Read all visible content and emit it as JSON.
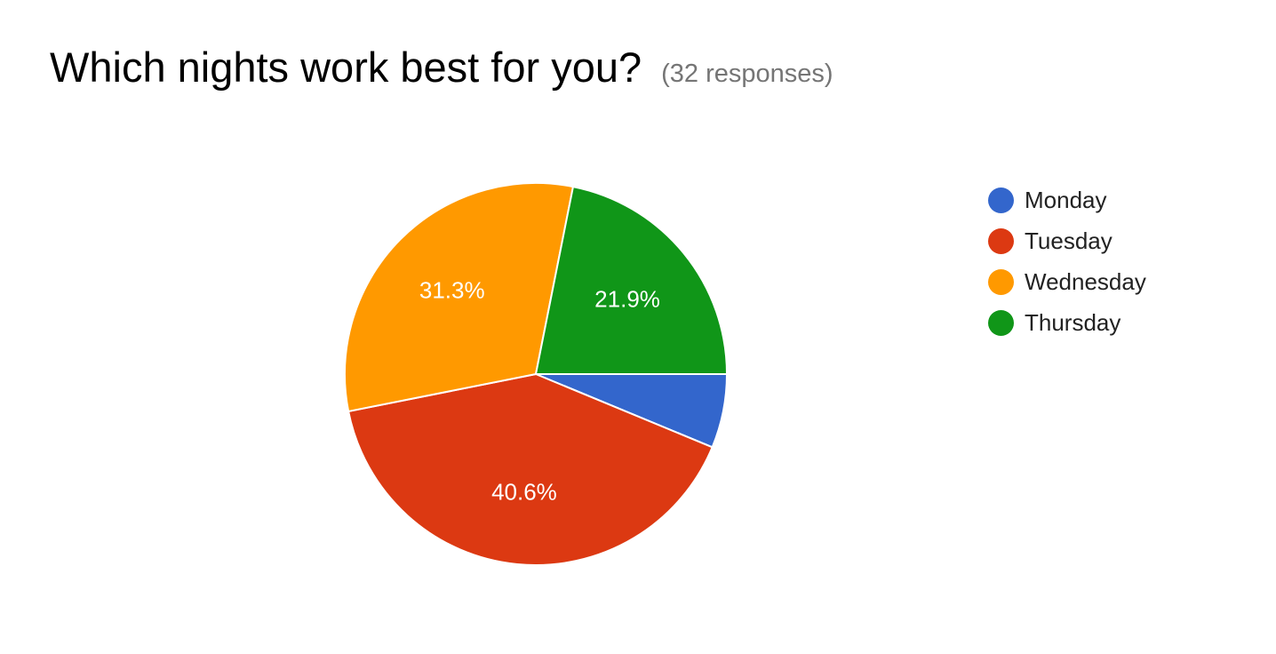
{
  "question": {
    "title": "Which nights work best for you?",
    "responses_label": "(32 responses)"
  },
  "chart_data": {
    "type": "pie",
    "total_responses": 32,
    "categories": [
      "Monday",
      "Tuesday",
      "Wednesday",
      "Thursday"
    ],
    "values": [
      2,
      13,
      10,
      7
    ],
    "percent_labels": [
      "",
      "40.6%",
      "31.3%",
      "21.9%"
    ],
    "colors": [
      "#3366cc",
      "#dc3912",
      "#ff9900",
      "#109618"
    ],
    "legend_position": "right",
    "label_color": "#ffffff"
  }
}
